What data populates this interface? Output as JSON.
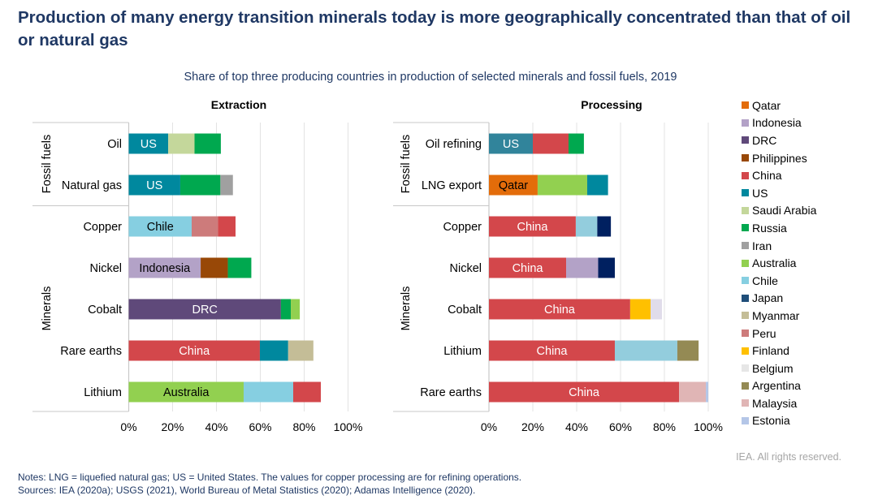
{
  "title": "Production of many energy transition minerals today is more geographically concentrated than that of oil or natural gas",
  "subtitle": "Share of top three producing countries in production of selected minerals and fossil fuels, 2019",
  "rights": "IEA. All rights reserved.",
  "notes": "Notes: LNG = liquefied natural gas; US = United States. The values for copper processing are for refining operations.",
  "sources": "Sources: IEA (2020a); USGS (2021), World Bureau of Metal Statistics (2020); Adamas Intelligence (2020).",
  "colors": {
    "Qatar": "#e36c0a",
    "Indonesia": "#b3a2c7",
    "DRC": "#5f497a",
    "Philippines": "#984807",
    "China": "#d3474b",
    "US": "#00889e",
    "US (oil refining)": "#31849b",
    "Saudi Arabia": "#c4d79b",
    "Russia": "#00a84f",
    "Iran": "#a0a0a0",
    "Australia": "#92d050",
    "Chile": "#86cfe1",
    "Chile (processing)": "#93cddd",
    "Japan": "#002060",
    "Myanmar": "#c4bd97",
    "Peru": "#cd7b7b",
    "Finland": "#ffc000",
    "Belgium": "#e0dcea",
    "Argentina": "#948a54",
    "Malaysia": "#e0b5b5",
    "Estonia": "#b4c6e7"
  },
  "chart_data": [
    {
      "type": "bar",
      "orientation": "horizontal",
      "stacked": true,
      "title": "Extraction",
      "xlim": [
        0,
        100
      ],
      "xticks": [
        "0%",
        "20%",
        "40%",
        "60%",
        "80%",
        "100%"
      ],
      "groups": [
        {
          "label": "Fossil fuels",
          "categories": [
            "Oil",
            "Natural gas"
          ]
        },
        {
          "label": "Minerals",
          "categories": [
            "Copper",
            "Nickel",
            "Cobalt",
            "Rare earths",
            "Lithium"
          ]
        }
      ],
      "bars": [
        {
          "category": "Oil",
          "segments": [
            {
              "country": "US",
              "value": 18,
              "label": "US"
            },
            {
              "country": "Saudi Arabia",
              "value": 12
            },
            {
              "country": "Russia",
              "value": 12
            }
          ]
        },
        {
          "category": "Natural gas",
          "segments": [
            {
              "country": "US",
              "value": 23.5,
              "label": "US"
            },
            {
              "country": "Russia",
              "value": 18.3
            },
            {
              "country": "Iran",
              "value": 5.7
            }
          ]
        },
        {
          "category": "Copper",
          "segments": [
            {
              "country": "Chile",
              "value": 28.7,
              "label": "Chile"
            },
            {
              "country": "Peru",
              "value": 12
            },
            {
              "country": "China",
              "value": 8
            }
          ]
        },
        {
          "category": "Nickel",
          "segments": [
            {
              "country": "Indonesia",
              "value": 32.8,
              "label": "Indonesia"
            },
            {
              "country": "Philippines",
              "value": 12.4
            },
            {
              "country": "Russia",
              "value": 10.7
            }
          ]
        },
        {
          "category": "Cobalt",
          "segments": [
            {
              "country": "DRC",
              "value": 69.4,
              "label": "DRC"
            },
            {
              "country": "Russia",
              "value": 4.5
            },
            {
              "country": "Australia",
              "value": 4.1
            }
          ]
        },
        {
          "category": "Rare earths",
          "segments": [
            {
              "country": "China",
              "value": 59.8,
              "label": "China"
            },
            {
              "country": "US",
              "value": 12.9
            },
            {
              "country": "Myanmar",
              "value": 11.5
            }
          ]
        },
        {
          "category": "Lithium",
          "segments": [
            {
              "country": "Australia",
              "value": 52.4,
              "label": "Australia"
            },
            {
              "country": "Chile",
              "value": 22.6
            },
            {
              "country": "China",
              "value": 12.6
            }
          ]
        }
      ]
    },
    {
      "type": "bar",
      "orientation": "horizontal",
      "stacked": true,
      "title": "Processing",
      "xlim": [
        0,
        100
      ],
      "xticks": [
        "0%",
        "20%",
        "40%",
        "60%",
        "80%",
        "100%"
      ],
      "groups": [
        {
          "label": "Fossil fuels",
          "categories": [
            "Oil refining",
            "LNG export"
          ]
        },
        {
          "label": "Minerals",
          "categories": [
            "Copper",
            "Nickel",
            "Cobalt",
            "Lithium",
            "Rare earths"
          ]
        }
      ],
      "bars": [
        {
          "category": "Oil refining",
          "segments": [
            {
              "country": "US",
              "value": 20,
              "label": "US",
              "color_key": "US (oil refining)"
            },
            {
              "country": "China",
              "value": 16.3
            },
            {
              "country": "Russia",
              "value": 7
            }
          ]
        },
        {
          "category": "LNG export",
          "segments": [
            {
              "country": "Qatar",
              "value": 22.2,
              "label": "Qatar"
            },
            {
              "country": "Australia",
              "value": 22.6
            },
            {
              "country": "US",
              "value": 9.5
            }
          ]
        },
        {
          "category": "Copper",
          "segments": [
            {
              "country": "China",
              "value": 39.6,
              "label": "China"
            },
            {
              "country": "Chile",
              "value": 9.8,
              "color_key": "Chile (processing)"
            },
            {
              "country": "Japan",
              "value": 6.2
            }
          ]
        },
        {
          "category": "Nickel",
          "segments": [
            {
              "country": "China",
              "value": 35.2,
              "label": "China"
            },
            {
              "country": "Indonesia",
              "value": 14.6
            },
            {
              "country": "Japan",
              "value": 7.6
            }
          ]
        },
        {
          "category": "Cobalt",
          "segments": [
            {
              "country": "China",
              "value": 64.4,
              "label": "China"
            },
            {
              "country": "Finland",
              "value": 9.3
            },
            {
              "country": "Belgium",
              "value": 5.2
            }
          ]
        },
        {
          "category": "Lithium",
          "segments": [
            {
              "country": "China",
              "value": 57.4,
              "label": "China"
            },
            {
              "country": "Chile",
              "value": 28.5,
              "color_key": "Chile (processing)"
            },
            {
              "country": "Argentina",
              "value": 9.7
            }
          ]
        },
        {
          "category": "Rare earths",
          "segments": [
            {
              "country": "China",
              "value": 86.7,
              "label": "China"
            },
            {
              "country": "Malaysia",
              "value": 12.2
            },
            {
              "country": "Estonia",
              "value": 1.1
            }
          ]
        }
      ]
    }
  ],
  "legend": {
    "placement": "right",
    "items": [
      {
        "label": "Qatar",
        "color": "#e36c0a"
      },
      {
        "label": "Indonesia",
        "color": "#b3a2c7"
      },
      {
        "label": "DRC",
        "color": "#5f497a"
      },
      {
        "label": "Philippines",
        "color": "#984807"
      },
      {
        "label": "China",
        "color": "#d3474b"
      },
      {
        "label": "US",
        "color": "#00889e"
      },
      {
        "label": "Saudi Arabia",
        "color": "#c4d79b"
      },
      {
        "label": "Russia",
        "color": "#00a84f"
      },
      {
        "label": "Iran",
        "color": "#a0a0a0"
      },
      {
        "label": "Australia",
        "color": "#92d050"
      },
      {
        "label": "Chile",
        "color": "#86cfe1"
      },
      {
        "label": "Japan",
        "color": "#1f4e79"
      },
      {
        "label": "Myanmar",
        "color": "#c4bd97"
      },
      {
        "label": "Peru",
        "color": "#cd7b7b"
      },
      {
        "label": "Finland",
        "color": "#ffc000"
      },
      {
        "label": "Belgium",
        "color": "#e6e6e6"
      },
      {
        "label": "Argentina",
        "color": "#948a54"
      },
      {
        "label": "Malaysia",
        "color": "#e0b5b5"
      },
      {
        "label": "Estonia",
        "color": "#b4c6e7"
      }
    ]
  }
}
